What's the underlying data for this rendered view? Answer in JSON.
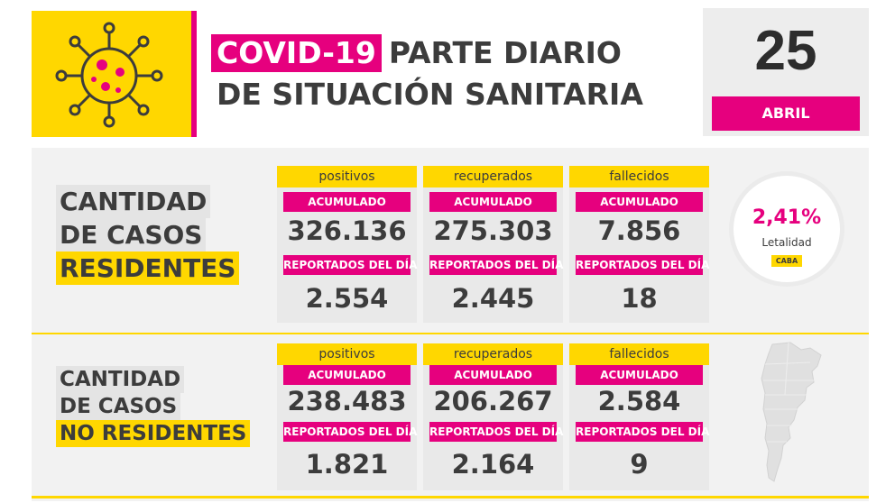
{
  "header": {
    "title_highlight": "COVID-19",
    "title_line1": "PARTE DIARIO",
    "title_line2": "DE SITUACIÓN SANITARIA",
    "virus_icon": "virus-icon"
  },
  "date": {
    "day": "25",
    "month": "ABRIL"
  },
  "residentes": {
    "label_line1": "CANTIDAD",
    "label_line2": "DE CASOS",
    "label_line3": "RESIDENTES",
    "columns": [
      {
        "title": "positivos",
        "acum_label": "ACUMULADO",
        "acum": "326.136",
        "dia_label": "REPORTADOS DEL DÍA",
        "dia": "2.554"
      },
      {
        "title": "recuperados",
        "acum_label": "ACUMULADO",
        "acum": "275.303",
        "dia_label": "REPORTADOS DEL DÍA",
        "dia": "2.445"
      },
      {
        "title": "fallecidos",
        "acum_label": "ACUMULADO",
        "acum": "7.856",
        "dia_label": "REPORTADOS DEL DÍA",
        "dia": "18"
      }
    ]
  },
  "no_residentes": {
    "label_line1": "CANTIDAD",
    "label_line2": "DE CASOS",
    "label_line3": "NO RESIDENTES",
    "columns": [
      {
        "title": "positivos",
        "acum_label": "ACUMULADO",
        "acum": "238.483",
        "dia_label": "REPORTADOS DEL DÍA",
        "dia": "1.821"
      },
      {
        "title": "recuperados",
        "acum_label": "ACUMULADO",
        "acum": "206.267",
        "dia_label": "REPORTADOS DEL DÍA",
        "dia": "2.164"
      },
      {
        "title": "fallecidos",
        "acum_label": "ACUMULADO",
        "acum": "2.584",
        "dia_label": "REPORTADOS DEL DÍA",
        "dia": "9"
      }
    ]
  },
  "letalidad": {
    "value": "2,41%",
    "label": "Letalidad",
    "scope": "CABA"
  },
  "map_icon": "argentina-map-icon",
  "colors": {
    "yellow": "#ffd700",
    "magenta": "#e6007e",
    "dark": "#3c3c3c",
    "panel": "#f2f2f2"
  }
}
